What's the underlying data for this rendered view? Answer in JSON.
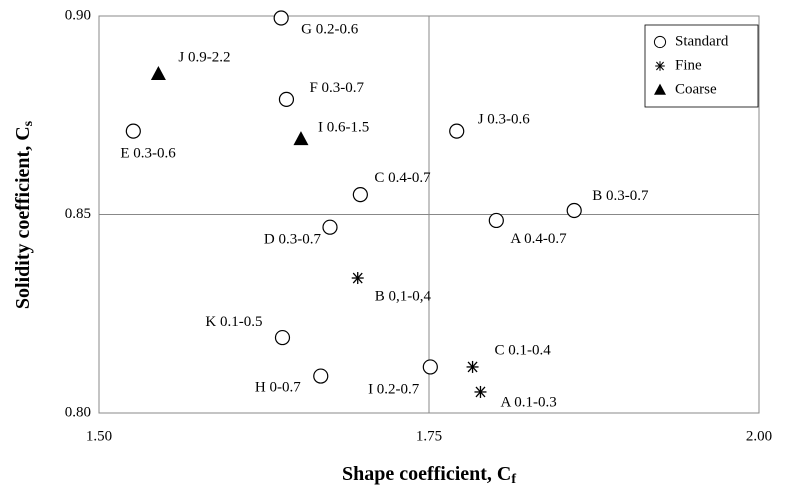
{
  "chart_data": {
    "type": "scatter",
    "x_label": {
      "text": "Shape coefficient, C",
      "subscript": "f"
    },
    "y_label": {
      "text": "Solidity coefficient, C",
      "subscript": "s"
    },
    "xlim": [
      1.5,
      2.0
    ],
    "ylim": [
      0.8,
      0.9
    ],
    "xticks": [
      {
        "value": 1.5,
        "label": "1.50"
      },
      {
        "value": 1.75,
        "label": "1.75"
      },
      {
        "value": 2.0,
        "label": "2.00"
      }
    ],
    "yticks": [
      {
        "value": 0.8,
        "label": "0.80"
      },
      {
        "value": 0.85,
        "label": "0.85"
      },
      {
        "value": 0.9,
        "label": "0.90"
      }
    ],
    "grid": true,
    "legend": "upper right",
    "series": [
      {
        "name": "Standard",
        "marker": "circle",
        "color": "#000000",
        "x": [
          1.638,
          1.642,
          1.526,
          1.771,
          1.698,
          1.86,
          1.801,
          1.675,
          1.639,
          1.668,
          1.751
        ],
        "values": [
          0.8995,
          0.879,
          0.871,
          0.871,
          0.855,
          0.851,
          0.8485,
          0.8468,
          0.819,
          0.8093,
          0.8116
        ],
        "point_labels": [
          "G 0.2-0.6",
          "F 0.3-0.7",
          "E 0.3-0.6",
          "J 0.3-0.6",
          "C 0.4-0.7",
          "B 0.3-0.7",
          "A 0.4-0.7",
          "D 0.3-0.7",
          "K 0.1-0.5",
          "H 0-0.7",
          "I 0.2-0.7"
        ]
      },
      {
        "name": "Fine",
        "marker": "asterisk",
        "color": "#000000",
        "x": [
          1.696,
          1.783,
          1.789
        ],
        "values": [
          0.834,
          0.8116,
          0.8053
        ],
        "point_labels": [
          "B 0,1-0,4",
          "C 0.1-0.4",
          "A 0.1-0.3"
        ]
      },
      {
        "name": "Coarse",
        "marker": "triangle",
        "color": "#000000",
        "x": [
          1.545,
          1.653
        ],
        "values": [
          0.8854,
          0.869
        ],
        "point_labels": [
          "J 0.9-2.2",
          "I 0.6-1.5"
        ]
      }
    ]
  }
}
